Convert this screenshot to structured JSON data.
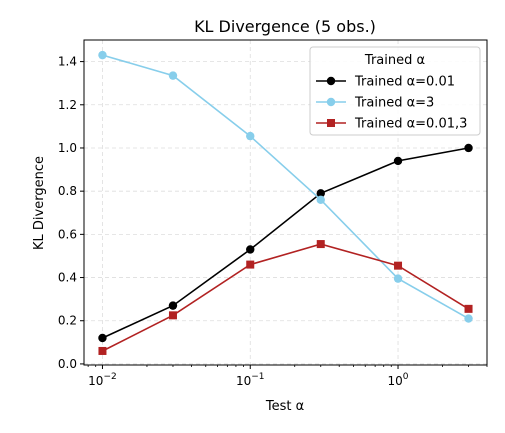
{
  "chart_data": {
    "type": "line",
    "title": "KL Divergence (5 obs.)",
    "xlabel": "Test α",
    "ylabel": "KL Divergence",
    "xscale": "log",
    "xlim": [
      0.0075,
      4.0
    ],
    "ylim": [
      -0.005,
      1.5
    ],
    "x": [
      0.01,
      0.03,
      0.1,
      0.3,
      1,
      3
    ],
    "xticks": [
      {
        "value": 0.01,
        "base": "10",
        "exp": "−2"
      },
      {
        "value": 0.1,
        "base": "10",
        "exp": "−1"
      },
      {
        "value": 1,
        "base": "10",
        "exp": "0"
      }
    ],
    "yticks": [
      0.0,
      0.2,
      0.4,
      0.6,
      0.8,
      1.0,
      1.2,
      1.4
    ],
    "ytick_labels": [
      "0.0",
      "0.2",
      "0.4",
      "0.6",
      "0.8",
      "1.0",
      "1.2",
      "1.4"
    ],
    "grid": true,
    "legend": {
      "title": "Trained α",
      "position": "top-right"
    },
    "series": [
      {
        "name": "Trained α=0.01",
        "color": "#000000",
        "marker": "circle",
        "values": [
          0.12,
          0.27,
          0.53,
          0.79,
          0.94,
          1.0
        ]
      },
      {
        "name": "Trained α=3",
        "color": "#87ceeb",
        "marker": "circle",
        "values": [
          1.43,
          1.335,
          1.055,
          0.76,
          0.395,
          0.21
        ]
      },
      {
        "name": "Trained α=0.01,3",
        "color": "#b22222",
        "marker": "square",
        "values": [
          0.06,
          0.225,
          0.46,
          0.555,
          0.455,
          0.255
        ]
      }
    ]
  }
}
